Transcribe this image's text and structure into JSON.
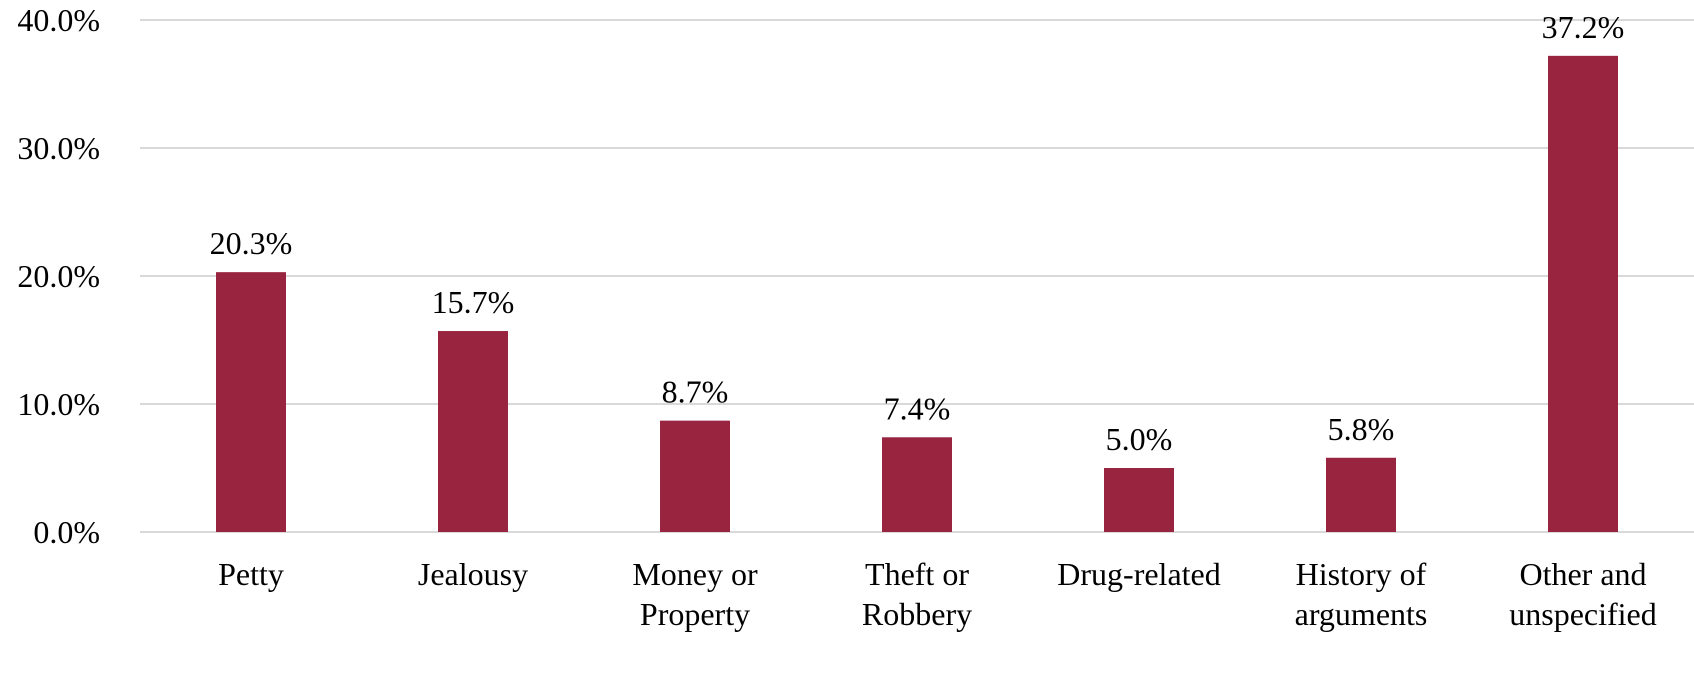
{
  "chart_data": {
    "type": "bar",
    "categories": [
      [
        "Petty"
      ],
      [
        "Jealousy"
      ],
      [
        "Money or",
        "Property"
      ],
      [
        "Theft or",
        "Robbery"
      ],
      [
        "Drug-related"
      ],
      [
        "History of",
        "arguments"
      ],
      [
        "Other and",
        "unspecified"
      ]
    ],
    "values": [
      20.3,
      15.7,
      8.7,
      7.4,
      5.0,
      5.8,
      37.2
    ],
    "value_labels": [
      "20.3%",
      "15.7%",
      "8.7%",
      "7.4%",
      "5.0%",
      "5.8%",
      "37.2%"
    ],
    "ylim": [
      0,
      40
    ],
    "yticks": [
      0,
      10,
      20,
      30,
      40
    ],
    "ytick_labels": [
      "0.0%",
      "10.0%",
      "20.0%",
      "30.0%",
      "40.0%"
    ],
    "title": "",
    "xlabel": "",
    "ylabel": "",
    "grid": true,
    "legend": "none",
    "colors": {
      "bar": "#98243f",
      "grid": "#d9d9d9",
      "axis": "#d9d9d9",
      "text": "#000000"
    }
  }
}
